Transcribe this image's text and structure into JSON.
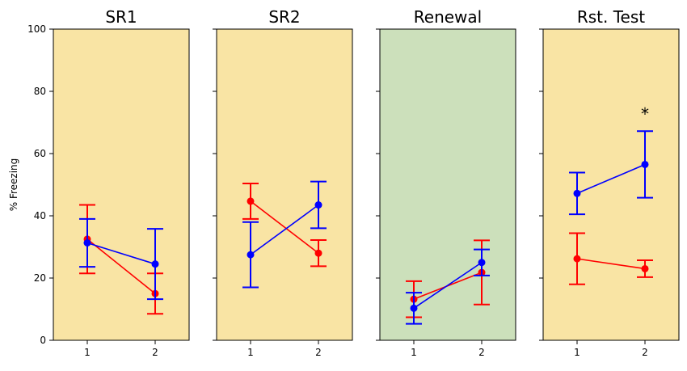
{
  "chart_data": {
    "type": "line",
    "ylabel": "% Freezing",
    "ylim": [
      0,
      100
    ],
    "yticks": [
      0,
      20,
      40,
      60,
      80,
      100
    ],
    "xticks": [
      1,
      2
    ],
    "xlim": [
      0.5,
      2.5
    ],
    "panels": [
      {
        "title": "SR1",
        "background": "#f9e4a4",
        "series": [
          {
            "color": "#ff0000",
            "x": [
              1,
              2
            ],
            "y": [
              32.5,
              15.0
            ],
            "err": [
              11.0,
              6.5
            ]
          },
          {
            "color": "#0000ff",
            "x": [
              1,
              2
            ],
            "y": [
              31.3,
              24.5
            ],
            "err": [
              7.7,
              11.3
            ]
          }
        ],
        "annotations": []
      },
      {
        "title": "SR2",
        "background": "#f9e4a4",
        "series": [
          {
            "color": "#ff0000",
            "x": [
              1,
              2
            ],
            "y": [
              44.7,
              28.0
            ],
            "err": [
              5.7,
              4.2
            ]
          },
          {
            "color": "#0000ff",
            "x": [
              1,
              2
            ],
            "y": [
              27.5,
              43.5
            ],
            "err": [
              10.5,
              7.5
            ]
          }
        ],
        "annotations": []
      },
      {
        "title": "Renewal",
        "background": "#cce0bb",
        "series": [
          {
            "color": "#ff0000",
            "x": [
              1,
              2
            ],
            "y": [
              13.2,
              21.8
            ],
            "err": [
              5.8,
              10.3
            ]
          },
          {
            "color": "#0000ff",
            "x": [
              1,
              2
            ],
            "y": [
              10.3,
              25.0
            ],
            "err": [
              5.0,
              4.2
            ]
          }
        ],
        "annotations": []
      },
      {
        "title": "Rst. Test",
        "background": "#f9e4a4",
        "series": [
          {
            "color": "#ff0000",
            "x": [
              1,
              2
            ],
            "y": [
              26.2,
              23.0
            ],
            "err": [
              8.2,
              2.7
            ]
          },
          {
            "color": "#0000ff",
            "x": [
              1,
              2
            ],
            "y": [
              47.2,
              56.5
            ],
            "err": [
              6.7,
              10.7
            ]
          }
        ],
        "annotations": [
          {
            "text": "*",
            "x": 2,
            "y": 73
          }
        ]
      }
    ]
  }
}
